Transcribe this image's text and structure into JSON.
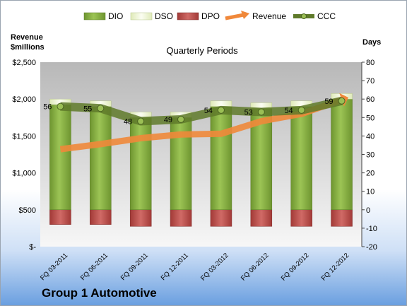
{
  "chart_data": {
    "type": "bar",
    "title": "Quarterly Periods",
    "categories": [
      "FQ 03-2011",
      "FQ 06-2011",
      "FQ 09-2011",
      "FQ 12-2011",
      "FQ 03-2012",
      "FQ 06-2012",
      "FQ 09-2012",
      "FQ 12-2012"
    ],
    "y_left_label_line1": "Revenue",
    "y_left_label_line2": "$millions",
    "y_right_label": "Days",
    "y_left_ticks": [
      "$-",
      "$500",
      "$1,000",
      "$1,500",
      "$2,000",
      "$2,500"
    ],
    "y_left_range": [
      0,
      2500
    ],
    "y_right_range": [
      -20,
      80
    ],
    "y_right_ticks": [
      "-20",
      "-10",
      "0",
      "10",
      "20",
      "30",
      "40",
      "50",
      "60",
      "70",
      "80"
    ],
    "legend_position": "top",
    "gridlines": false,
    "series": [
      {
        "name": "DIO",
        "kind": "stacked-bar",
        "axis": "right",
        "color": "#7fa83a",
        "values": [
          57,
          56,
          50,
          50,
          56,
          55,
          56,
          60
        ]
      },
      {
        "name": "DSO",
        "kind": "stacked-bar",
        "axis": "right",
        "color": "#eef5d8",
        "values": [
          3,
          3,
          3,
          3,
          3,
          3,
          3,
          3
        ]
      },
      {
        "name": "DPO",
        "kind": "stacked-bar-negative",
        "axis": "right",
        "color": "#c0504d",
        "values": [
          -8,
          -8,
          -9,
          -9,
          -9,
          -9,
          -9,
          -9
        ]
      },
      {
        "name": "Revenue",
        "kind": "line",
        "axis": "left",
        "color": "#f0883a",
        "values": [
          1320,
          1390,
          1470,
          1520,
          1530,
          1700,
          1800,
          1990
        ]
      },
      {
        "name": "CCC",
        "kind": "line",
        "axis": "right",
        "color": "#5f7a2a",
        "values": [
          56,
          55,
          48,
          49,
          54,
          53,
          54,
          59
        ],
        "labels": [
          "56",
          "55",
          "48",
          "49",
          "54",
          "53",
          "54",
          "59"
        ]
      }
    ]
  },
  "company": "Group 1 Automotive"
}
